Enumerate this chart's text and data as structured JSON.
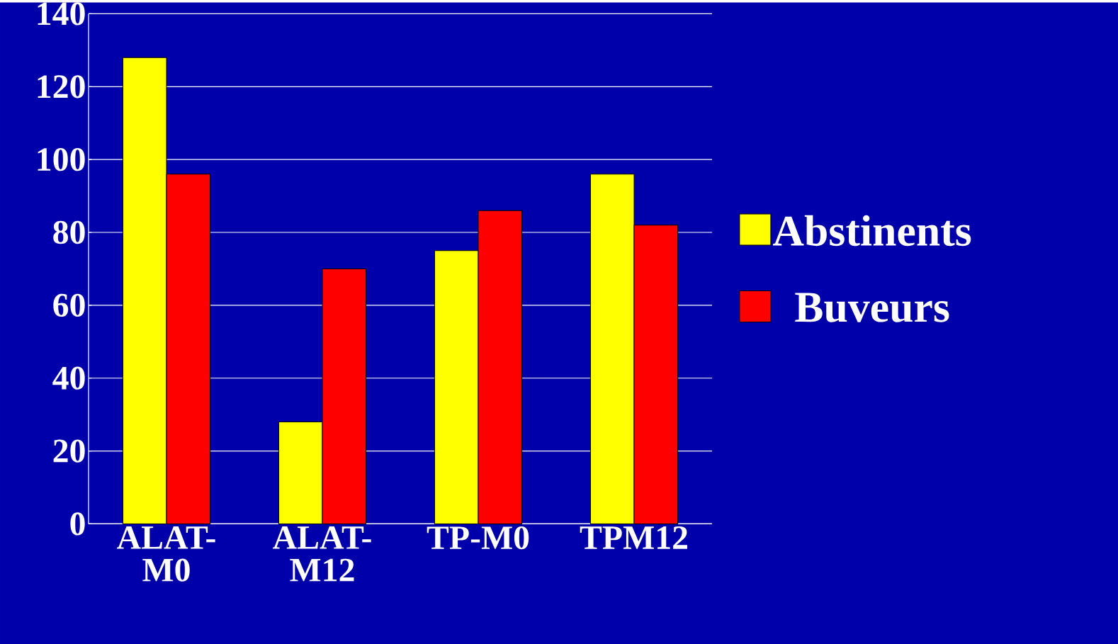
{
  "chart_data": {
    "type": "bar",
    "categories": [
      "ALAT-M0",
      "ALAT-M12",
      "TP-M0",
      "TPM12"
    ],
    "series": [
      {
        "name": "Abstinents",
        "color": "#ffff00",
        "values": [
          128,
          28,
          75,
          96
        ]
      },
      {
        "name": "Buveurs",
        "color": "#ff0000",
        "values": [
          96,
          70,
          86,
          82
        ]
      }
    ],
    "ylim": [
      0,
      140
    ],
    "yticks": [
      0,
      20,
      40,
      60,
      80,
      100,
      120,
      140
    ],
    "grid": "y",
    "legend": "right"
  }
}
